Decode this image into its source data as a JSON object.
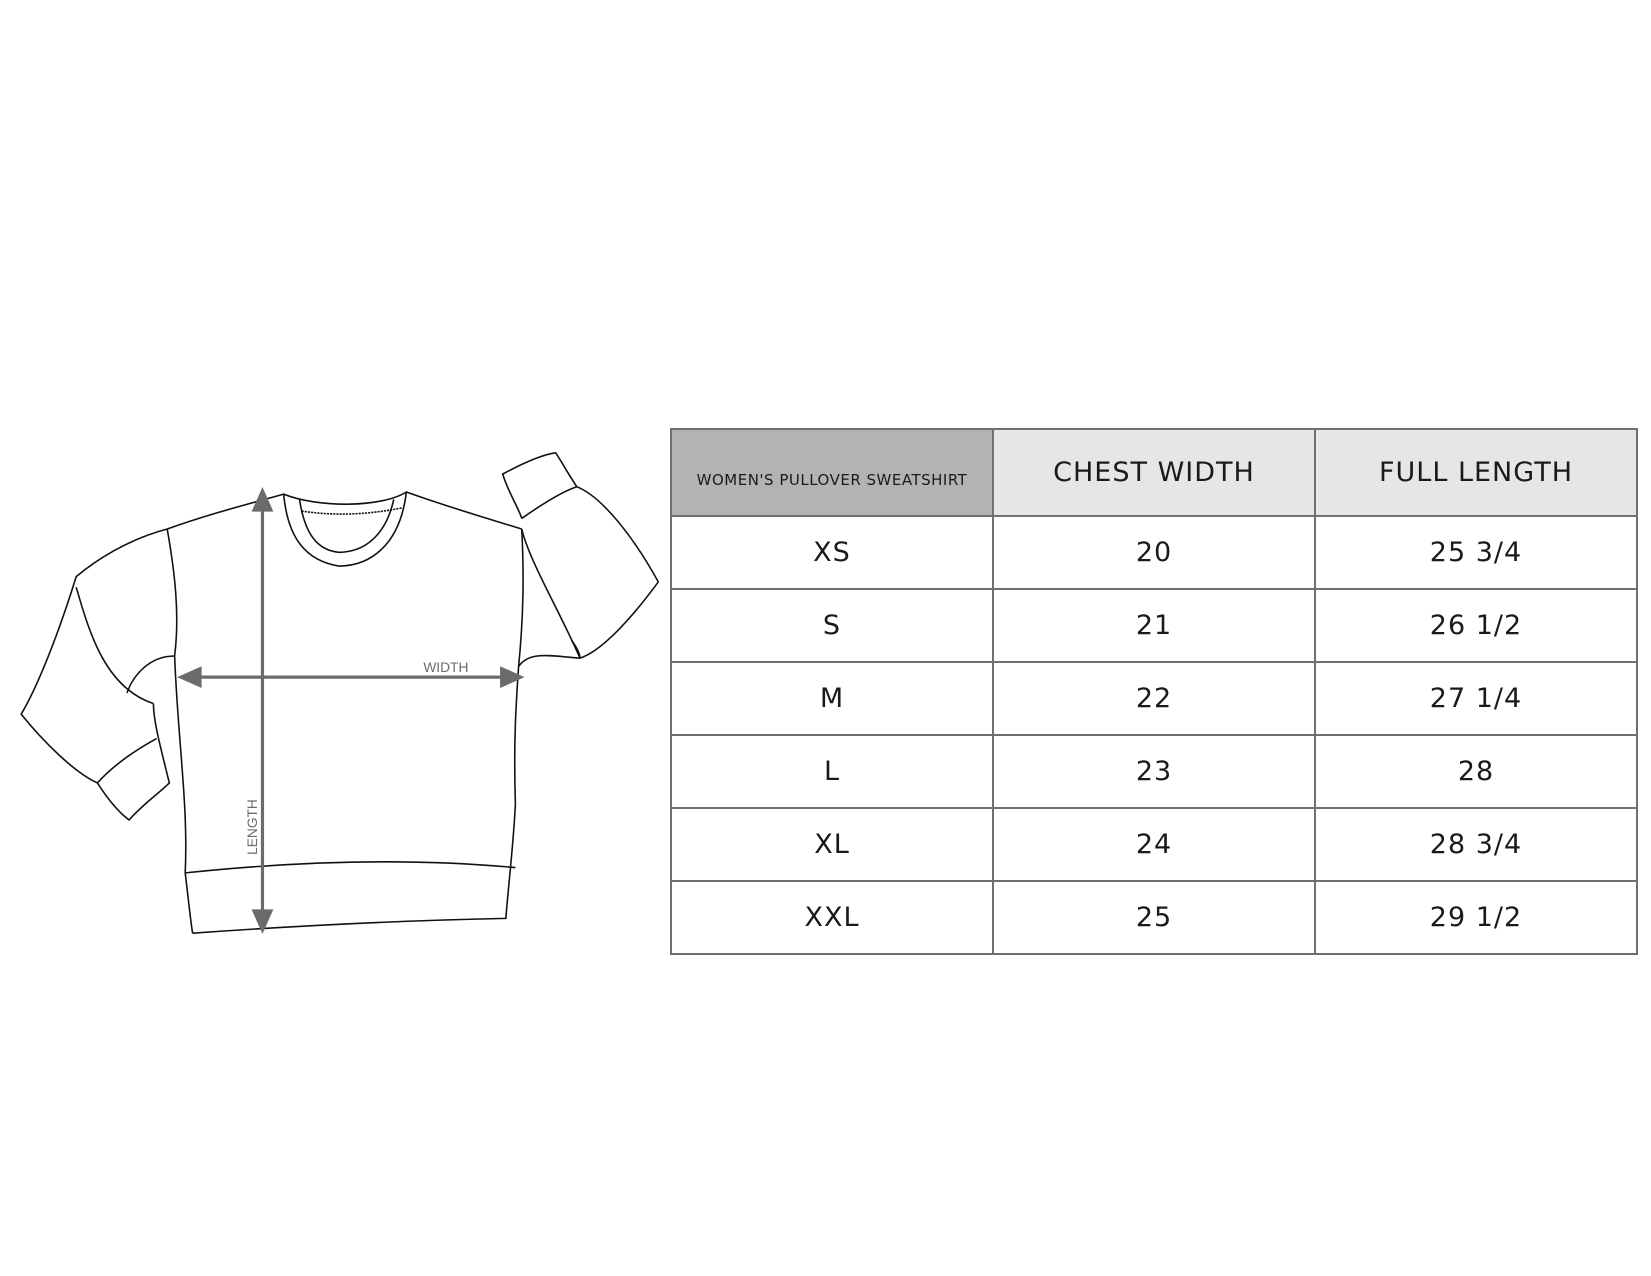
{
  "diagram": {
    "width_label": "WIDTH",
    "length_label": "LENGTH",
    "arrow_color": "#6b6b6b"
  },
  "table": {
    "headers": [
      "WOMEN'S PULLOVER SWEATSHIRT",
      "CHEST WIDTH",
      "FULL LENGTH"
    ],
    "rows": [
      [
        "XS",
        "20",
        "25 3/4"
      ],
      [
        "S",
        "21",
        "26 1/2"
      ],
      [
        "M",
        "22",
        "27 1/4"
      ],
      [
        "L",
        "23",
        "28"
      ],
      [
        "XL",
        "24",
        "28 3/4"
      ],
      [
        "XXL",
        "25",
        "29 1/2"
      ]
    ]
  }
}
